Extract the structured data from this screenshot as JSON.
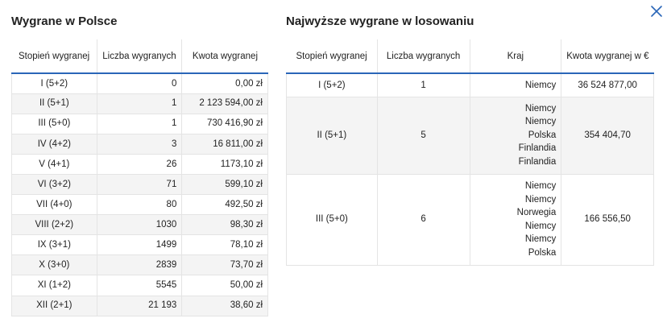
{
  "poland": {
    "title": "Wygrane w Polsce",
    "headers": {
      "tier": "Stopień wygranej",
      "count": "Liczba wygranych",
      "amount": "Kwota wygranej"
    },
    "rows": [
      {
        "tier": "I (5+2)",
        "count": "0",
        "amount": "0,00 zł"
      },
      {
        "tier": "II (5+1)",
        "count": "1",
        "amount": "2 123 594,00 zł"
      },
      {
        "tier": "III (5+0)",
        "count": "1",
        "amount": "730 416,90 zł"
      },
      {
        "tier": "IV (4+2)",
        "count": "3",
        "amount": "16 811,00 zł"
      },
      {
        "tier": "V (4+1)",
        "count": "26",
        "amount": "1173,10 zł"
      },
      {
        "tier": "VI (3+2)",
        "count": "71",
        "amount": "599,10 zł"
      },
      {
        "tier": "VII (4+0)",
        "count": "80",
        "amount": "492,50 zł"
      },
      {
        "tier": "VIII (2+2)",
        "count": "1030",
        "amount": "98,30 zł"
      },
      {
        "tier": "IX (3+1)",
        "count": "1499",
        "amount": "78,10 zł"
      },
      {
        "tier": "X (3+0)",
        "count": "2839",
        "amount": "73,70 zł"
      },
      {
        "tier": "XI (1+2)",
        "count": "5545",
        "amount": "50,00 zł"
      },
      {
        "tier": "XII (2+1)",
        "count": "21 193",
        "amount": "38,60 zł"
      }
    ]
  },
  "draw": {
    "title": "Najwyższe wygrane w losowaniu",
    "headers": {
      "tier": "Stopień wygranej",
      "count": "Liczba wygranych",
      "country": "Kraj",
      "amount": "Kwota wygranej w €"
    },
    "rows": [
      {
        "tier": "I (5+2)",
        "count": "1",
        "countries": [
          "Niemcy"
        ],
        "amount": "36 524 877,00"
      },
      {
        "tier": "II (5+1)",
        "count": "5",
        "countries": [
          "Niemcy",
          "Niemcy",
          "Polska",
          "Finlandia",
          "Finlandia"
        ],
        "amount": "354 404,70"
      },
      {
        "tier": "III (5+0)",
        "count": "6",
        "countries": [
          "Niemcy",
          "Niemcy",
          "Norwegia",
          "Niemcy",
          "Niemcy",
          "Polska"
        ],
        "amount": "166 556,50"
      }
    ]
  },
  "close_icon": "close-icon",
  "colors": {
    "accent": "#2a66b8",
    "header_border": "#2a66b8",
    "stripe": "#f4f4f4",
    "grid": "#e4e4e4"
  }
}
